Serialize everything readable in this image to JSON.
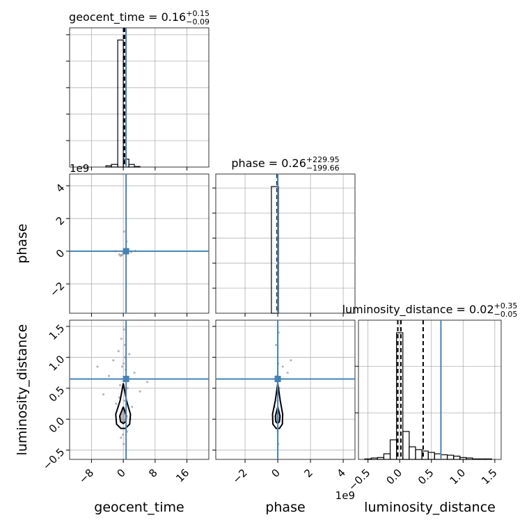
{
  "chart_data": {
    "type": "corner",
    "grid": true,
    "truth_color": "#4682b4",
    "hist_color": "#000000",
    "point_color": "#9a9a9a",
    "params": [
      {
        "name": "geocent_time",
        "title": "geocent_time = 0.16",
        "title_upper": "+0.15",
        "title_lower": "−0.09",
        "xlim": [
          -13.5,
          21.5
        ],
        "xticks": [
          {
            "value": -8,
            "label": "−8"
          },
          0,
          8,
          16
        ],
        "truth": 0.7,
        "quantiles": [
          0.07,
          0.16,
          0.31
        ],
        "hist": {
          "bins": [
            -4.38,
            -2.98,
            -1.4,
            0,
            1.4,
            2.8,
            4.2
          ],
          "counts": [
            0.05,
            0.1,
            4.8,
            0.3,
            0.1,
            0.02
          ],
          "ylim": [
            0,
            5.26
          ],
          "yticks": [
            1,
            2,
            3,
            4,
            5
          ]
        }
      },
      {
        "name": "phase",
        "title": "phase = 0.26",
        "title_upper": "+229.95",
        "title_lower": "−199.66",
        "offset": "1e9",
        "xlim": [
          -3.79,
          4.72
        ],
        "xticks": [
          {
            "value": -2,
            "label": "−2"
          },
          0,
          2,
          4
        ],
        "truth": 0.0,
        "quantiles": [
          -0.04
        ],
        "hist": {
          "bins": [
            -0.39,
            0.04
          ],
          "counts": [
            5.06
          ],
          "ylim": [
            0,
            5.56
          ],
          "yticks": [
            1,
            2,
            3,
            4,
            5
          ]
        }
      },
      {
        "name": "luminosity_distance",
        "title": "luminosity_distance = 0.02",
        "title_upper": "+0.35",
        "title_lower": "−0.05",
        "xlim": [
          -0.65,
          1.6
        ],
        "xticks": [
          {
            "value": -0.5,
            "label": "−0.5"
          },
          {
            "value": 0,
            "label": "0.0"
          },
          0.5,
          {
            "value": 1,
            "label": "1.0"
          },
          1.5
        ],
        "truth": 0.65,
        "quantiles": [
          -0.03,
          0.02,
          0.37
        ],
        "hist": {
          "bins": [
            -0.55,
            -0.45,
            -0.35,
            -0.25,
            -0.15,
            -0.05,
            0.05,
            0.15,
            0.25,
            0.35,
            0.45,
            0.55,
            0.65,
            0.75,
            0.85,
            0.95,
            1.05,
            1.15,
            1.25,
            1.35,
            1.45
          ],
          "counts": [
            0.01,
            0.03,
            0.04,
            0.12,
            0.42,
            2.72,
            0.6,
            0.27,
            0.21,
            0.18,
            0.15,
            0.12,
            0.1,
            0.09,
            0.07,
            0.04,
            0.03,
            0.01,
            0.01,
            0.01
          ],
          "ylim": [
            0,
            2.99
          ],
          "yticks": [
            1,
            2
          ]
        }
      }
    ],
    "panels": [
      {
        "x": [
          -1,
          -0.5,
          0,
          0.5,
          1.2,
          2,
          3,
          -2,
          0.2,
          0.8,
          -0.7,
          -0.3
        ],
        "y": [
          -0.2,
          -0.25,
          -0.1,
          0.05,
          0,
          -0.05,
          0.02,
          0,
          1.2,
          0.6,
          -0.28,
          -0.22
        ],
        "contours": []
      },
      {
        "x": [
          0.2,
          -0.5,
          0.4,
          -1.2,
          1.5,
          -2.5,
          0.1,
          -0.3,
          0.6,
          2.8,
          -3.6,
          0,
          -0.8,
          1.1,
          4.2,
          -5,
          0.3,
          -1.8,
          2.2,
          0.5,
          -0.2,
          0.9,
          -6.5,
          6,
          -0.6,
          0.1,
          1.8,
          -1,
          0.4,
          -0.1
        ],
        "y": [
          1.45,
          1.3,
          1.2,
          1.1,
          1.05,
          0.95,
          0.9,
          0.85,
          0.8,
          0.75,
          0.7,
          0.62,
          0.55,
          0.5,
          0.45,
          0.4,
          0.3,
          0.25,
          0.2,
          0.1,
          -0.05,
          -0.2,
          0.85,
          0.6,
          -0.3,
          -0.4,
          0,
          0.35,
          1,
          -0.25
        ],
        "contours": [
          {
            "x": [
              0,
              0.8,
              1.8,
              1.6,
              0.5,
              -0.6,
              -1.7,
              -1.9,
              -0.8,
              0
            ],
            "y": [
              0.58,
              0.3,
              0.08,
              -0.08,
              -0.15,
              -0.15,
              -0.08,
              0.08,
              0.3,
              0.58
            ]
          },
          {
            "x": [
              0,
              0.8,
              0.6,
              0,
              -0.7,
              -0.9,
              0
            ],
            "y": [
              0.2,
              0.05,
              -0.04,
              -0.07,
              -0.04,
              0.05,
              0.2
            ]
          }
        ]
      },
      {
        "x": [
          0.05,
          -0.1,
          0,
          0.02,
          0.3,
          -0.05,
          0.8,
          0.1,
          0,
          -0.2,
          0.01,
          0.6,
          0,
          0.03,
          -0.02
        ],
        "y": [
          1.4,
          1.2,
          1,
          0.9,
          0.85,
          0.7,
          0.95,
          0.5,
          0.3,
          0.2,
          0.1,
          0.75,
          -0.2,
          -0.4,
          0.6
        ],
        "contours": [
          {
            "x": [
              0,
              0.15,
              0.3,
              0.28,
              0.1,
              -0.1,
              -0.3,
              -0.32,
              -0.15,
              0
            ],
            "y": [
              0.58,
              0.3,
              0.08,
              -0.08,
              -0.15,
              -0.15,
              -0.08,
              0.08,
              0.3,
              0.58
            ]
          },
          {
            "x": [
              0,
              0.14,
              0.1,
              0,
              -0.12,
              -0.15,
              0
            ],
            "y": [
              0.2,
              0.05,
              -0.04,
              -0.07,
              -0.04,
              0.05,
              0.2
            ]
          }
        ]
      }
    ]
  }
}
